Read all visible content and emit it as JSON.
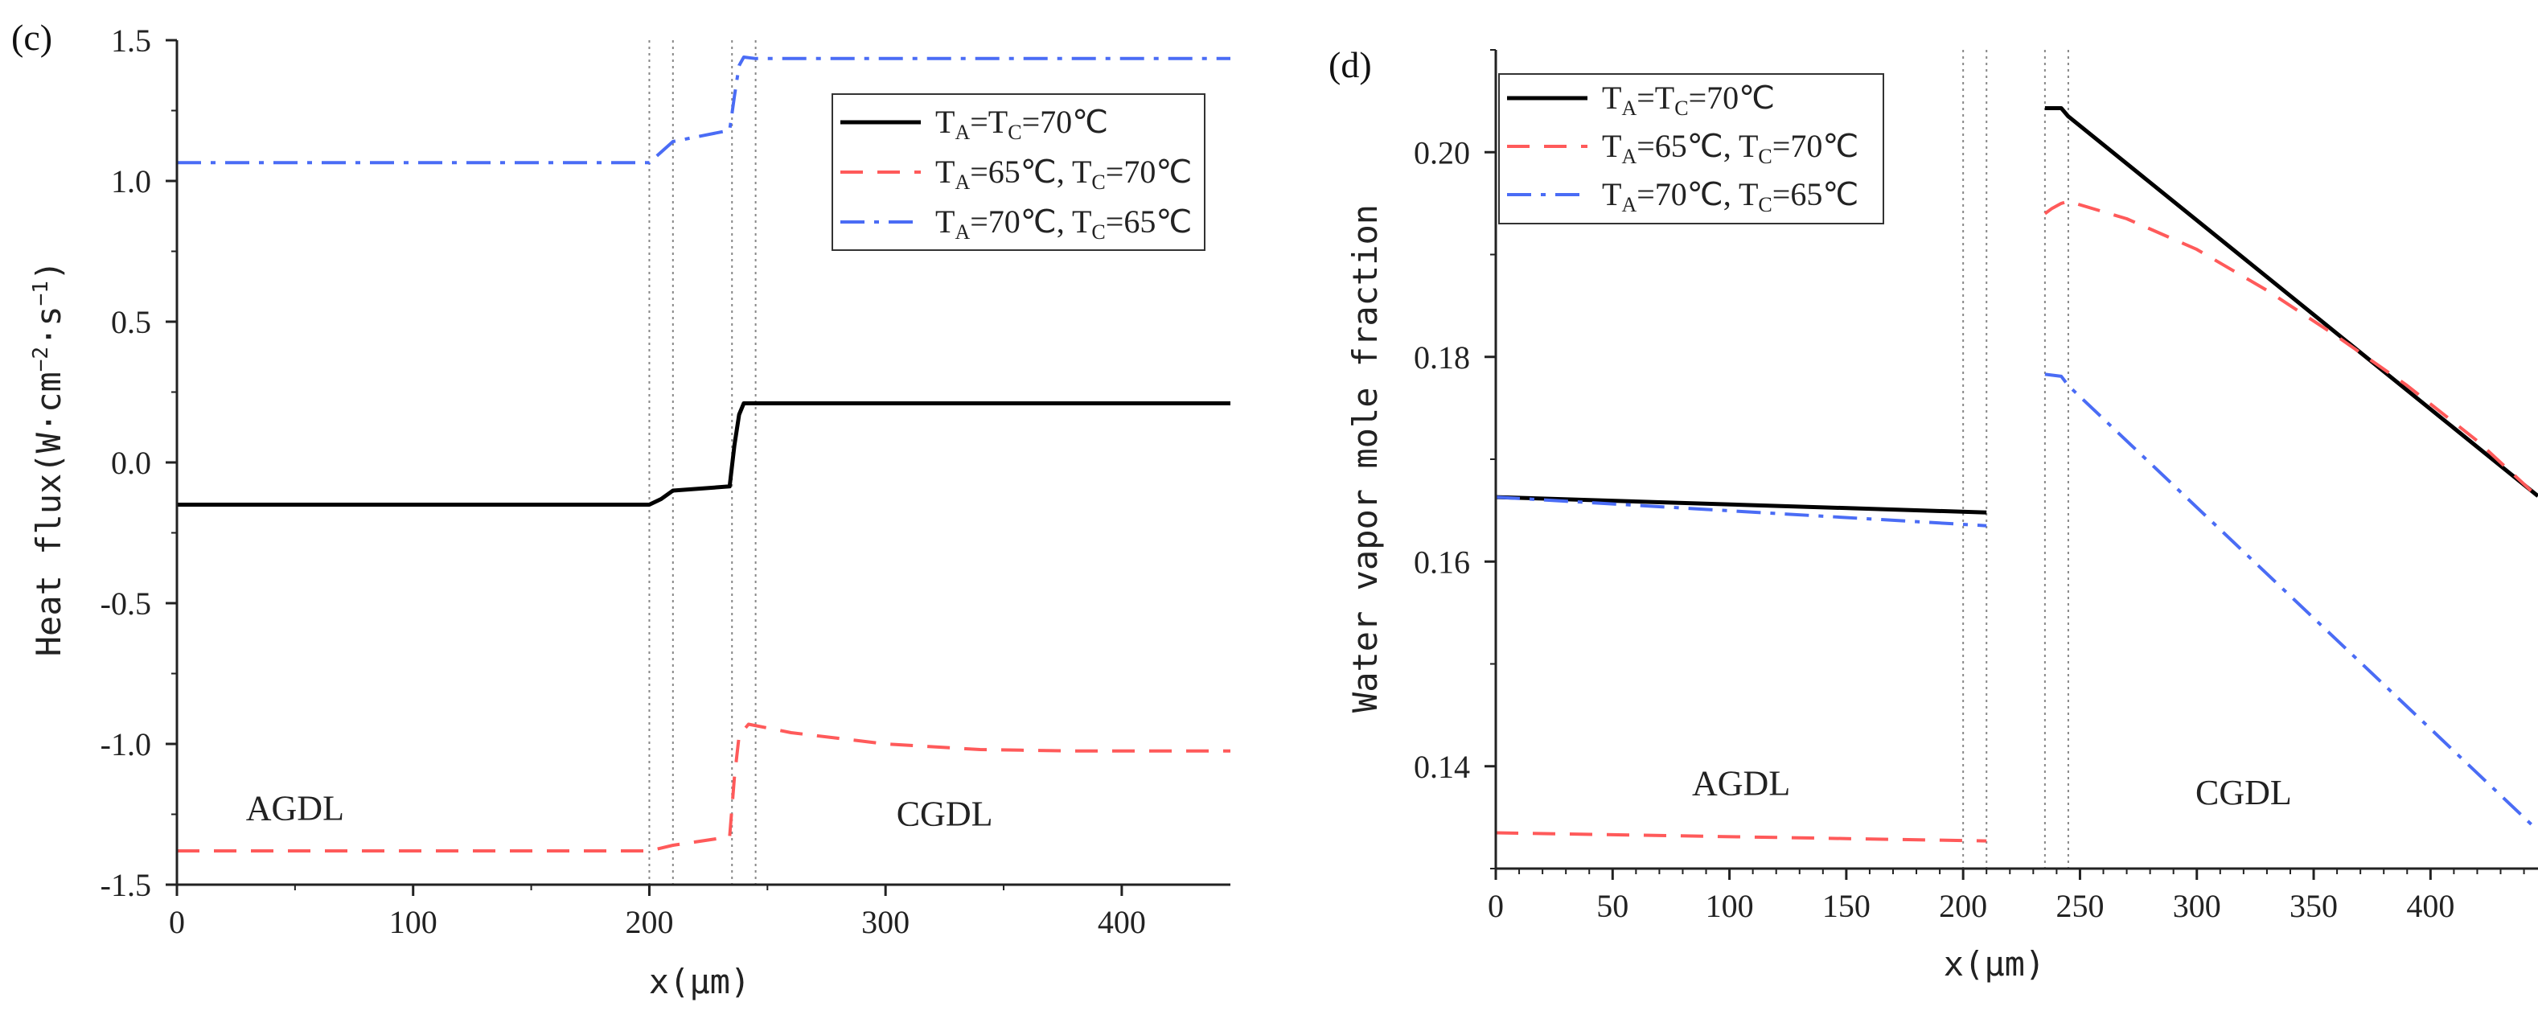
{
  "chart_data": [
    {
      "panel_label": "(c)",
      "type": "line",
      "title": "",
      "xlabel": "x(μm)",
      "ylabel_prefix": "Heat flux(W·cm",
      "ylabel_sup1": "−2",
      "ylabel_mid": "·s",
      "ylabel_sup2": "−1",
      "ylabel_suffix": ")",
      "xlim": [
        0,
        446
      ],
      "ylim": [
        -1.5,
        1.5
      ],
      "xticks": [
        0,
        100,
        200,
        300,
        400
      ],
      "xtick_labels": [
        "0",
        "100",
        "200",
        "300",
        "400"
      ],
      "yticks": [
        -1.5,
        -1.0,
        -0.5,
        0.0,
        0.5,
        1.0,
        1.5
      ],
      "ytick_labels": [
        "-1.5",
        "-1.0",
        "-0.5",
        "0.0",
        "0.5",
        "1.0",
        "1.5"
      ],
      "boundaries_x": [
        200,
        210,
        235,
        245
      ],
      "regions": [
        {
          "label": "AGDL",
          "x": 50,
          "y": -1.27
        },
        {
          "label": "CGDL",
          "x": 325,
          "y": -1.29
        }
      ],
      "legend_position": "top-right",
      "series": [
        {
          "key": "s1",
          "color": "#000000",
          "dash": "solid",
          "legend": [
            {
              "t": "T"
            },
            {
              "t": "A",
              "sub": true
            },
            {
              "t": "=T"
            },
            {
              "t": "C",
              "sub": true
            },
            {
              "t": "=70℃"
            }
          ],
          "x": [
            0,
            200,
            205,
            210,
            234,
            236,
            238,
            240,
            245,
            446
          ],
          "y": [
            -0.15,
            -0.15,
            -0.13,
            -0.1,
            -0.085,
            0.06,
            0.17,
            0.21,
            0.21,
            0.21
          ]
        },
        {
          "key": "s2",
          "color": "#ff5a5a",
          "dash": "dashed",
          "legend": [
            {
              "t": "T"
            },
            {
              "t": "A",
              "sub": true
            },
            {
              "t": "=65℃, T"
            },
            {
              "t": "C",
              "sub": true
            },
            {
              "t": "=70℃"
            }
          ],
          "x": [
            0,
            200,
            210,
            234,
            236,
            238,
            242,
            260,
            300,
            340,
            380,
            420,
            446
          ],
          "y": [
            -1.38,
            -1.38,
            -1.36,
            -1.33,
            -1.12,
            -0.97,
            -0.93,
            -0.96,
            -1.0,
            -1.02,
            -1.025,
            -1.025,
            -1.025
          ]
        },
        {
          "key": "s3",
          "color": "#4a6cf5",
          "dash": "dashdot",
          "legend": [
            {
              "t": "T"
            },
            {
              "t": "A",
              "sub": true
            },
            {
              "t": "=70℃, T"
            },
            {
              "t": "C",
              "sub": true
            },
            {
              "t": "=65℃"
            }
          ],
          "x": [
            0,
            200,
            210,
            234,
            236,
            238,
            240,
            245,
            446
          ],
          "y": [
            1.065,
            1.065,
            1.14,
            1.18,
            1.3,
            1.41,
            1.44,
            1.435,
            1.435
          ]
        }
      ]
    },
    {
      "panel_label": "(d)",
      "type": "line",
      "title": "",
      "xlabel": "x(μm)",
      "ylabel": "Water vapor mole fraction",
      "xlim": [
        0,
        446
      ],
      "ylim": [
        0.13,
        0.21
      ],
      "xticks": [
        0,
        50,
        100,
        150,
        200,
        250,
        300,
        350,
        400
      ],
      "xtick_labels": [
        "0",
        "50",
        "100",
        "150",
        "200",
        "250",
        "300",
        "350",
        "400"
      ],
      "yticks": [
        0.14,
        0.16,
        0.18,
        0.2
      ],
      "ytick_labels": [
        "0.14",
        "0.16",
        "0.18",
        "0.20"
      ],
      "boundaries_x": [
        200,
        210,
        235,
        245
      ],
      "regions": [
        {
          "label": "AGDL",
          "x": 105,
          "y": 0.1372
        },
        {
          "label": "CGDL",
          "x": 320,
          "y": 0.1363
        }
      ],
      "legend_position": "top-left",
      "series": [
        {
          "key": "s1",
          "color": "#000000",
          "dash": "solid",
          "legend": [
            {
              "t": "T"
            },
            {
              "t": "A",
              "sub": true
            },
            {
              "t": "=T"
            },
            {
              "t": "C",
              "sub": true
            },
            {
              "t": "=70℃"
            }
          ],
          "segments": [
            {
              "x": [
                0,
                210
              ],
              "y": [
                0.1663,
                0.1648
              ]
            },
            {
              "x": [
                235,
                242,
                245,
                446
              ],
              "y": [
                0.2043,
                0.2043,
                0.2035,
                0.1664
              ]
            }
          ]
        },
        {
          "key": "s2",
          "color": "#ff5a5a",
          "dash": "dashed",
          "legend": [
            {
              "t": "T"
            },
            {
              "t": "A",
              "sub": true
            },
            {
              "t": "=65℃, T"
            },
            {
              "t": "C",
              "sub": true
            },
            {
              "t": "=70℃"
            }
          ],
          "segments": [
            {
              "x": [
                0,
                210
              ],
              "y": [
                0.1335,
                0.1327
              ]
            },
            {
              "x": [
                235,
                238,
                242,
                245,
                270,
                300,
                330,
                360,
                390,
                420,
                446
              ],
              "y": [
                0.194,
                0.1945,
                0.195,
                0.1952,
                0.1935,
                0.1905,
                0.1865,
                0.182,
                0.1772,
                0.1718,
                0.1663
              ]
            }
          ]
        },
        {
          "key": "s3",
          "color": "#4a6cf5",
          "dash": "dashdot",
          "legend": [
            {
              "t": "T"
            },
            {
              "t": "A",
              "sub": true
            },
            {
              "t": "=70℃, T"
            },
            {
              "t": "C",
              "sub": true
            },
            {
              "t": "=65℃"
            }
          ],
          "segments": [
            {
              "x": [
                0,
                210
              ],
              "y": [
                0.1663,
                0.1635
              ]
            },
            {
              "x": [
                235,
                242,
                245,
                446
              ],
              "y": [
                0.1783,
                0.1781,
                0.1772,
                0.1337
              ]
            }
          ]
        }
      ]
    }
  ]
}
